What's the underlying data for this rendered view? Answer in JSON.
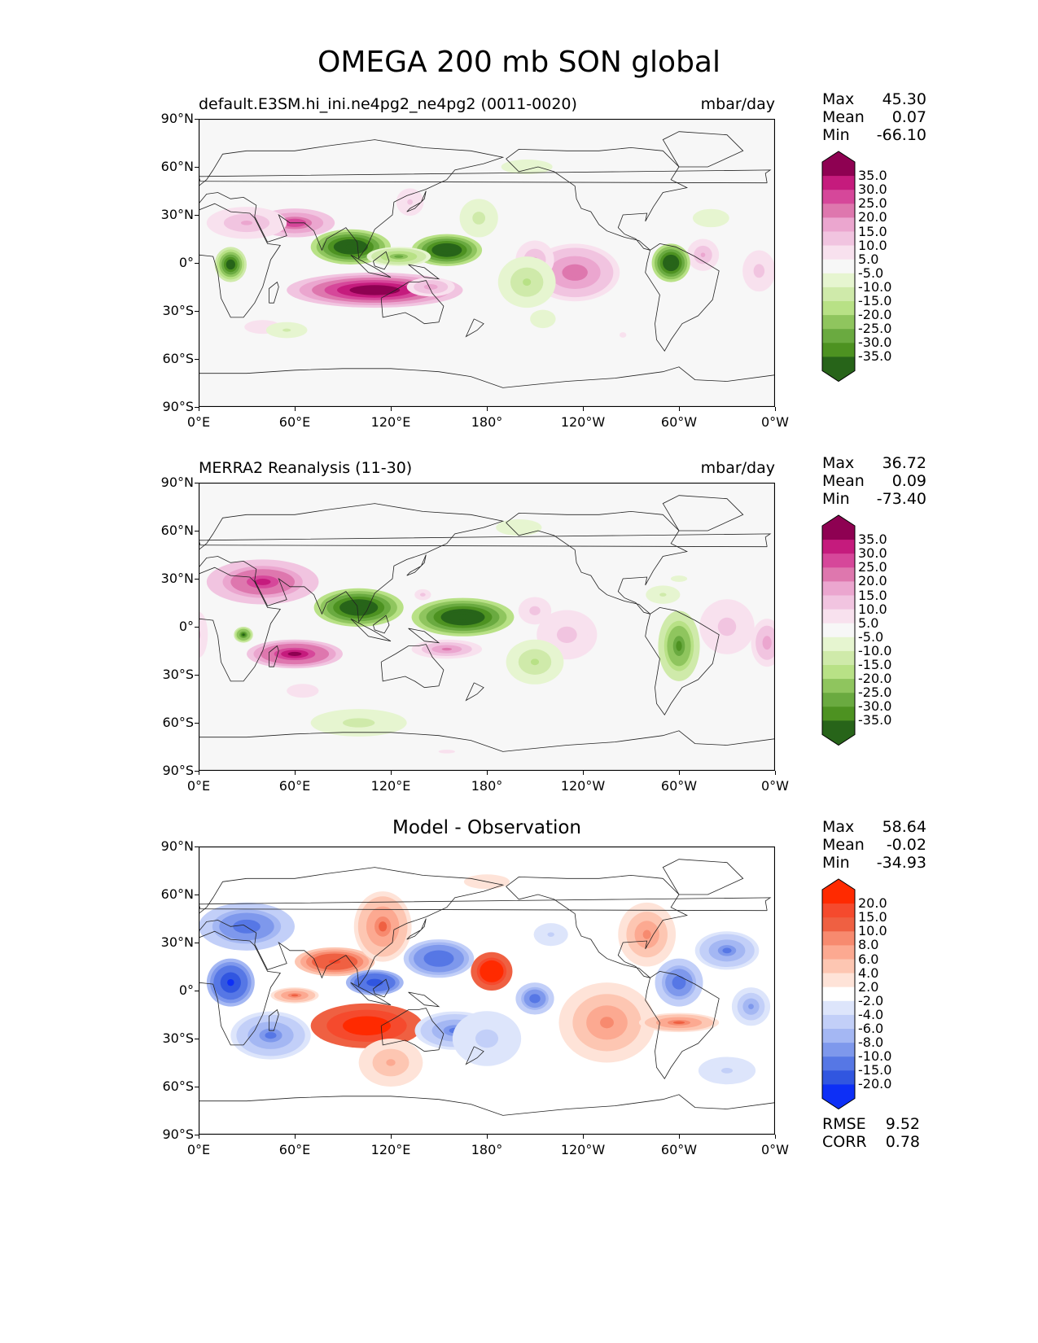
{
  "figure": {
    "title": "OMEGA 200 mb SON global"
  },
  "axes": {
    "lat_ticks": [
      "90°N",
      "60°N",
      "30°N",
      "0°",
      "30°S",
      "60°S",
      "90°S"
    ],
    "lon_ticks": [
      "0°E",
      "60°E",
      "120°E",
      "180°",
      "120°W",
      "60°W",
      "0°W"
    ]
  },
  "panels": [
    {
      "id": "test",
      "title": "default.E3SM.hi_ini.ne4pg2_ne4pg2 (0011-0020)",
      "units": "mbar/day",
      "stats": [
        {
          "label": "Max",
          "value": "45.30"
        },
        {
          "label": "Mean",
          "value": "0.07"
        },
        {
          "label": "Min",
          "value": "-66.10"
        }
      ],
      "colorbar": {
        "labels": [
          "35.0",
          "30.0",
          "25.0",
          "20.0",
          "15.0",
          "10.0",
          "5.0",
          "-5.0",
          "-10.0",
          "-15.0",
          "-20.0",
          "-25.0",
          "-30.0",
          "-35.0"
        ],
        "colors": [
          "#8e0152",
          "#c51b7d",
          "#d6479a",
          "#de77ae",
          "#eba6cf",
          "#f1c4e0",
          "#f8e1ee",
          "#f7f7f7",
          "#e6f5d0",
          "#cfeaaa",
          "#b8e186",
          "#8fc55e",
          "#6aaa40",
          "#4d9221",
          "#276419"
        ]
      },
      "blobs": [
        {
          "lon": 110,
          "lat": -17,
          "rx": 55,
          "ry": 11,
          "v": 40
        },
        {
          "lon": 60,
          "lat": 25,
          "rx": 25,
          "ry": 9,
          "v": 28
        },
        {
          "lon": 30,
          "lat": 25,
          "rx": 25,
          "ry": 10,
          "v": 15
        },
        {
          "lon": 145,
          "lat": -15,
          "rx": 15,
          "ry": 6,
          "v": 18
        },
        {
          "lon": 235,
          "lat": -6,
          "rx": 28,
          "ry": 18,
          "v": 24
        },
        {
          "lon": 210,
          "lat": 2,
          "rx": 12,
          "ry": 12,
          "v": 15
        },
        {
          "lon": 315,
          "lat": 5,
          "rx": 10,
          "ry": 10,
          "v": 15
        },
        {
          "lon": 350,
          "lat": -5,
          "rx": 12,
          "ry": 15,
          "v": 12
        },
        {
          "lon": 132,
          "lat": 38,
          "rx": 12,
          "ry": 12,
          "v": 10
        },
        {
          "lon": 40,
          "lat": -40,
          "rx": 40,
          "ry": 15,
          "v": 6
        },
        {
          "lon": 265,
          "lat": -45,
          "rx": 15,
          "ry": 12,
          "v": 5
        },
        {
          "lon": 20,
          "lat": -1,
          "rx": 10,
          "ry": 11,
          "v": -40
        },
        {
          "lon": 95,
          "lat": 10,
          "rx": 25,
          "ry": 11,
          "v": -45
        },
        {
          "lon": 155,
          "lat": 8,
          "rx": 22,
          "ry": 10,
          "v": -45
        },
        {
          "lon": 125,
          "lat": 4,
          "rx": 20,
          "ry": 6,
          "v": -25
        },
        {
          "lon": 295,
          "lat": 0,
          "rx": 12,
          "ry": 12,
          "v": -45
        },
        {
          "lon": 205,
          "lat": -12,
          "rx": 18,
          "ry": 16,
          "v": -15
        },
        {
          "lon": 175,
          "lat": 28,
          "rx": 14,
          "ry": 14,
          "v": -12
        },
        {
          "lon": 215,
          "lat": -35,
          "rx": 14,
          "ry": 10,
          "v": -8
        },
        {
          "lon": 205,
          "lat": 60,
          "rx": 28,
          "ry": 8,
          "v": -8
        },
        {
          "lon": 320,
          "lat": 28,
          "rx": 20,
          "ry": 10,
          "v": -8
        },
        {
          "lon": 55,
          "lat": -42,
          "rx": 18,
          "ry": 7,
          "v": -10
        }
      ]
    },
    {
      "id": "reference",
      "title": "MERRA2 Reanalysis (11-30)",
      "units": "mbar/day",
      "stats": [
        {
          "label": "Max",
          "value": "36.72"
        },
        {
          "label": "Mean",
          "value": "0.09"
        },
        {
          "label": "Min",
          "value": "-73.40"
        }
      ],
      "colorbar": {
        "labels": [
          "35.0",
          "30.0",
          "25.0",
          "20.0",
          "15.0",
          "10.0",
          "5.0",
          "-5.0",
          "-10.0",
          "-15.0",
          "-20.0",
          "-25.0",
          "-30.0",
          "-35.0"
        ],
        "colors": [
          "#8e0152",
          "#c51b7d",
          "#d6479a",
          "#de77ae",
          "#eba6cf",
          "#f1c4e0",
          "#f8e1ee",
          "#f7f7f7",
          "#e6f5d0",
          "#cfeaaa",
          "#b8e186",
          "#8fc55e",
          "#6aaa40",
          "#4d9221",
          "#276419"
        ]
      },
      "blobs": [
        {
          "lon": 40,
          "lat": 28,
          "rx": 35,
          "ry": 14,
          "v": 30
        },
        {
          "lon": 60,
          "lat": -17,
          "rx": 30,
          "ry": 9,
          "v": 35
        },
        {
          "lon": 155,
          "lat": -14,
          "rx": 22,
          "ry": 6,
          "v": 20
        },
        {
          "lon": 140,
          "lat": 20,
          "rx": 6,
          "ry": 4,
          "v": 12
        },
        {
          "lon": 0,
          "lat": -5,
          "rx": 8,
          "ry": 20,
          "v": 10
        },
        {
          "lon": 230,
          "lat": -5,
          "rx": 22,
          "ry": 18,
          "v": 12
        },
        {
          "lon": 210,
          "lat": 10,
          "rx": 12,
          "ry": 10,
          "v": 12
        },
        {
          "lon": 330,
          "lat": 0,
          "rx": 20,
          "ry": 20,
          "v": 12
        },
        {
          "lon": 355,
          "lat": -10,
          "rx": 10,
          "ry": 15,
          "v": 18
        },
        {
          "lon": 65,
          "lat": -40,
          "rx": 35,
          "ry": 15,
          "v": 6
        },
        {
          "lon": 155,
          "lat": -78,
          "rx": 18,
          "ry": 4,
          "v": 6
        },
        {
          "lon": 100,
          "lat": 12,
          "rx": 28,
          "ry": 12,
          "v": -45
        },
        {
          "lon": 165,
          "lat": 6,
          "rx": 32,
          "ry": 12,
          "v": -50
        },
        {
          "lon": 28,
          "lat": -5,
          "rx": 6,
          "ry": 5,
          "v": -35
        },
        {
          "lon": 300,
          "lat": -12,
          "rx": 13,
          "ry": 22,
          "v": -30
        },
        {
          "lon": 290,
          "lat": 20,
          "rx": 15,
          "ry": 8,
          "v": -10
        },
        {
          "lon": 210,
          "lat": -22,
          "rx": 18,
          "ry": 14,
          "v": -15
        },
        {
          "lon": 200,
          "lat": 62,
          "rx": 25,
          "ry": 9,
          "v": -8
        },
        {
          "lon": 100,
          "lat": -60,
          "rx": 35,
          "ry": 10,
          "v": -12
        },
        {
          "lon": 300,
          "lat": 30,
          "rx": 18,
          "ry": 7,
          "v": -6
        }
      ]
    },
    {
      "id": "difference",
      "title": "Model - Observation",
      "units": "",
      "stats": [
        {
          "label": "Max",
          "value": "58.64"
        },
        {
          "label": "Mean",
          "value": "-0.02"
        },
        {
          "label": "Min",
          "value": "-34.93"
        }
      ],
      "metrics": [
        {
          "label": "RMSE",
          "value": "9.52"
        },
        {
          "label": "CORR",
          "value": "0.78"
        }
      ],
      "colorbar": {
        "labels": [
          "20.0",
          "15.0",
          "10.0",
          "8.0",
          "6.0",
          "4.0",
          "2.0",
          "-2.0",
          "-4.0",
          "-6.0",
          "-8.0",
          "-10.0",
          "-15.0",
          "-20.0"
        ],
        "colors": [
          "#ff2a00",
          "#f54a2d",
          "#ef6042",
          "#f78a6f",
          "#fca991",
          "#fdc6b2",
          "#fee3d8",
          "#ffffff",
          "#dde5fb",
          "#c2cff8",
          "#a4b7f3",
          "#7e98ec",
          "#5677e5",
          "#3156e0",
          "#0d2ff6"
        ]
      },
      "blobs": [
        {
          "lon": 105,
          "lat": -22,
          "rx": 35,
          "ry": 14,
          "v": 28
        },
        {
          "lon": 183,
          "lat": 12,
          "rx": 13,
          "ry": 12,
          "v": 30
        },
        {
          "lon": 85,
          "lat": 18,
          "rx": 25,
          "ry": 9,
          "v": 15
        },
        {
          "lon": 115,
          "lat": 40,
          "rx": 18,
          "ry": 22,
          "v": 10
        },
        {
          "lon": 60,
          "lat": -3,
          "rx": 15,
          "ry": 5,
          "v": 10
        },
        {
          "lon": 120,
          "lat": -45,
          "rx": 20,
          "ry": 15,
          "v": 6
        },
        {
          "lon": 255,
          "lat": -20,
          "rx": 30,
          "ry": 25,
          "v": 8
        },
        {
          "lon": 300,
          "lat": -20,
          "rx": 25,
          "ry": 6,
          "v": 10
        },
        {
          "lon": 280,
          "lat": 35,
          "rx": 18,
          "ry": 20,
          "v": 8
        },
        {
          "lon": 180,
          "lat": 68,
          "rx": 25,
          "ry": 8,
          "v": 3
        },
        {
          "lon": 20,
          "lat": 5,
          "rx": 15,
          "ry": 15,
          "v": -20
        },
        {
          "lon": 30,
          "lat": 40,
          "rx": 30,
          "ry": 15,
          "v": -12
        },
        {
          "lon": 45,
          "lat": -28,
          "rx": 25,
          "ry": 15,
          "v": -10
        },
        {
          "lon": 110,
          "lat": 5,
          "rx": 18,
          "ry": 8,
          "v": -18
        },
        {
          "lon": 150,
          "lat": 20,
          "rx": 22,
          "ry": 12,
          "v": -14
        },
        {
          "lon": 160,
          "lat": -25,
          "rx": 25,
          "ry": 12,
          "v": -10
        },
        {
          "lon": 210,
          "lat": -5,
          "rx": 12,
          "ry": 10,
          "v": -12
        },
        {
          "lon": 300,
          "lat": 5,
          "rx": 15,
          "ry": 15,
          "v": -12
        },
        {
          "lon": 330,
          "lat": 25,
          "rx": 20,
          "ry": 12,
          "v": -10
        },
        {
          "lon": 345,
          "lat": -10,
          "rx": 12,
          "ry": 12,
          "v": -8
        },
        {
          "lon": 180,
          "lat": -30,
          "rx": 25,
          "ry": 20,
          "v": -5
        },
        {
          "lon": 330,
          "lat": -50,
          "rx": 25,
          "ry": 12,
          "v": -4
        },
        {
          "lon": 220,
          "lat": 35,
          "rx": 15,
          "ry": 10,
          "v": -4
        }
      ]
    }
  ]
}
